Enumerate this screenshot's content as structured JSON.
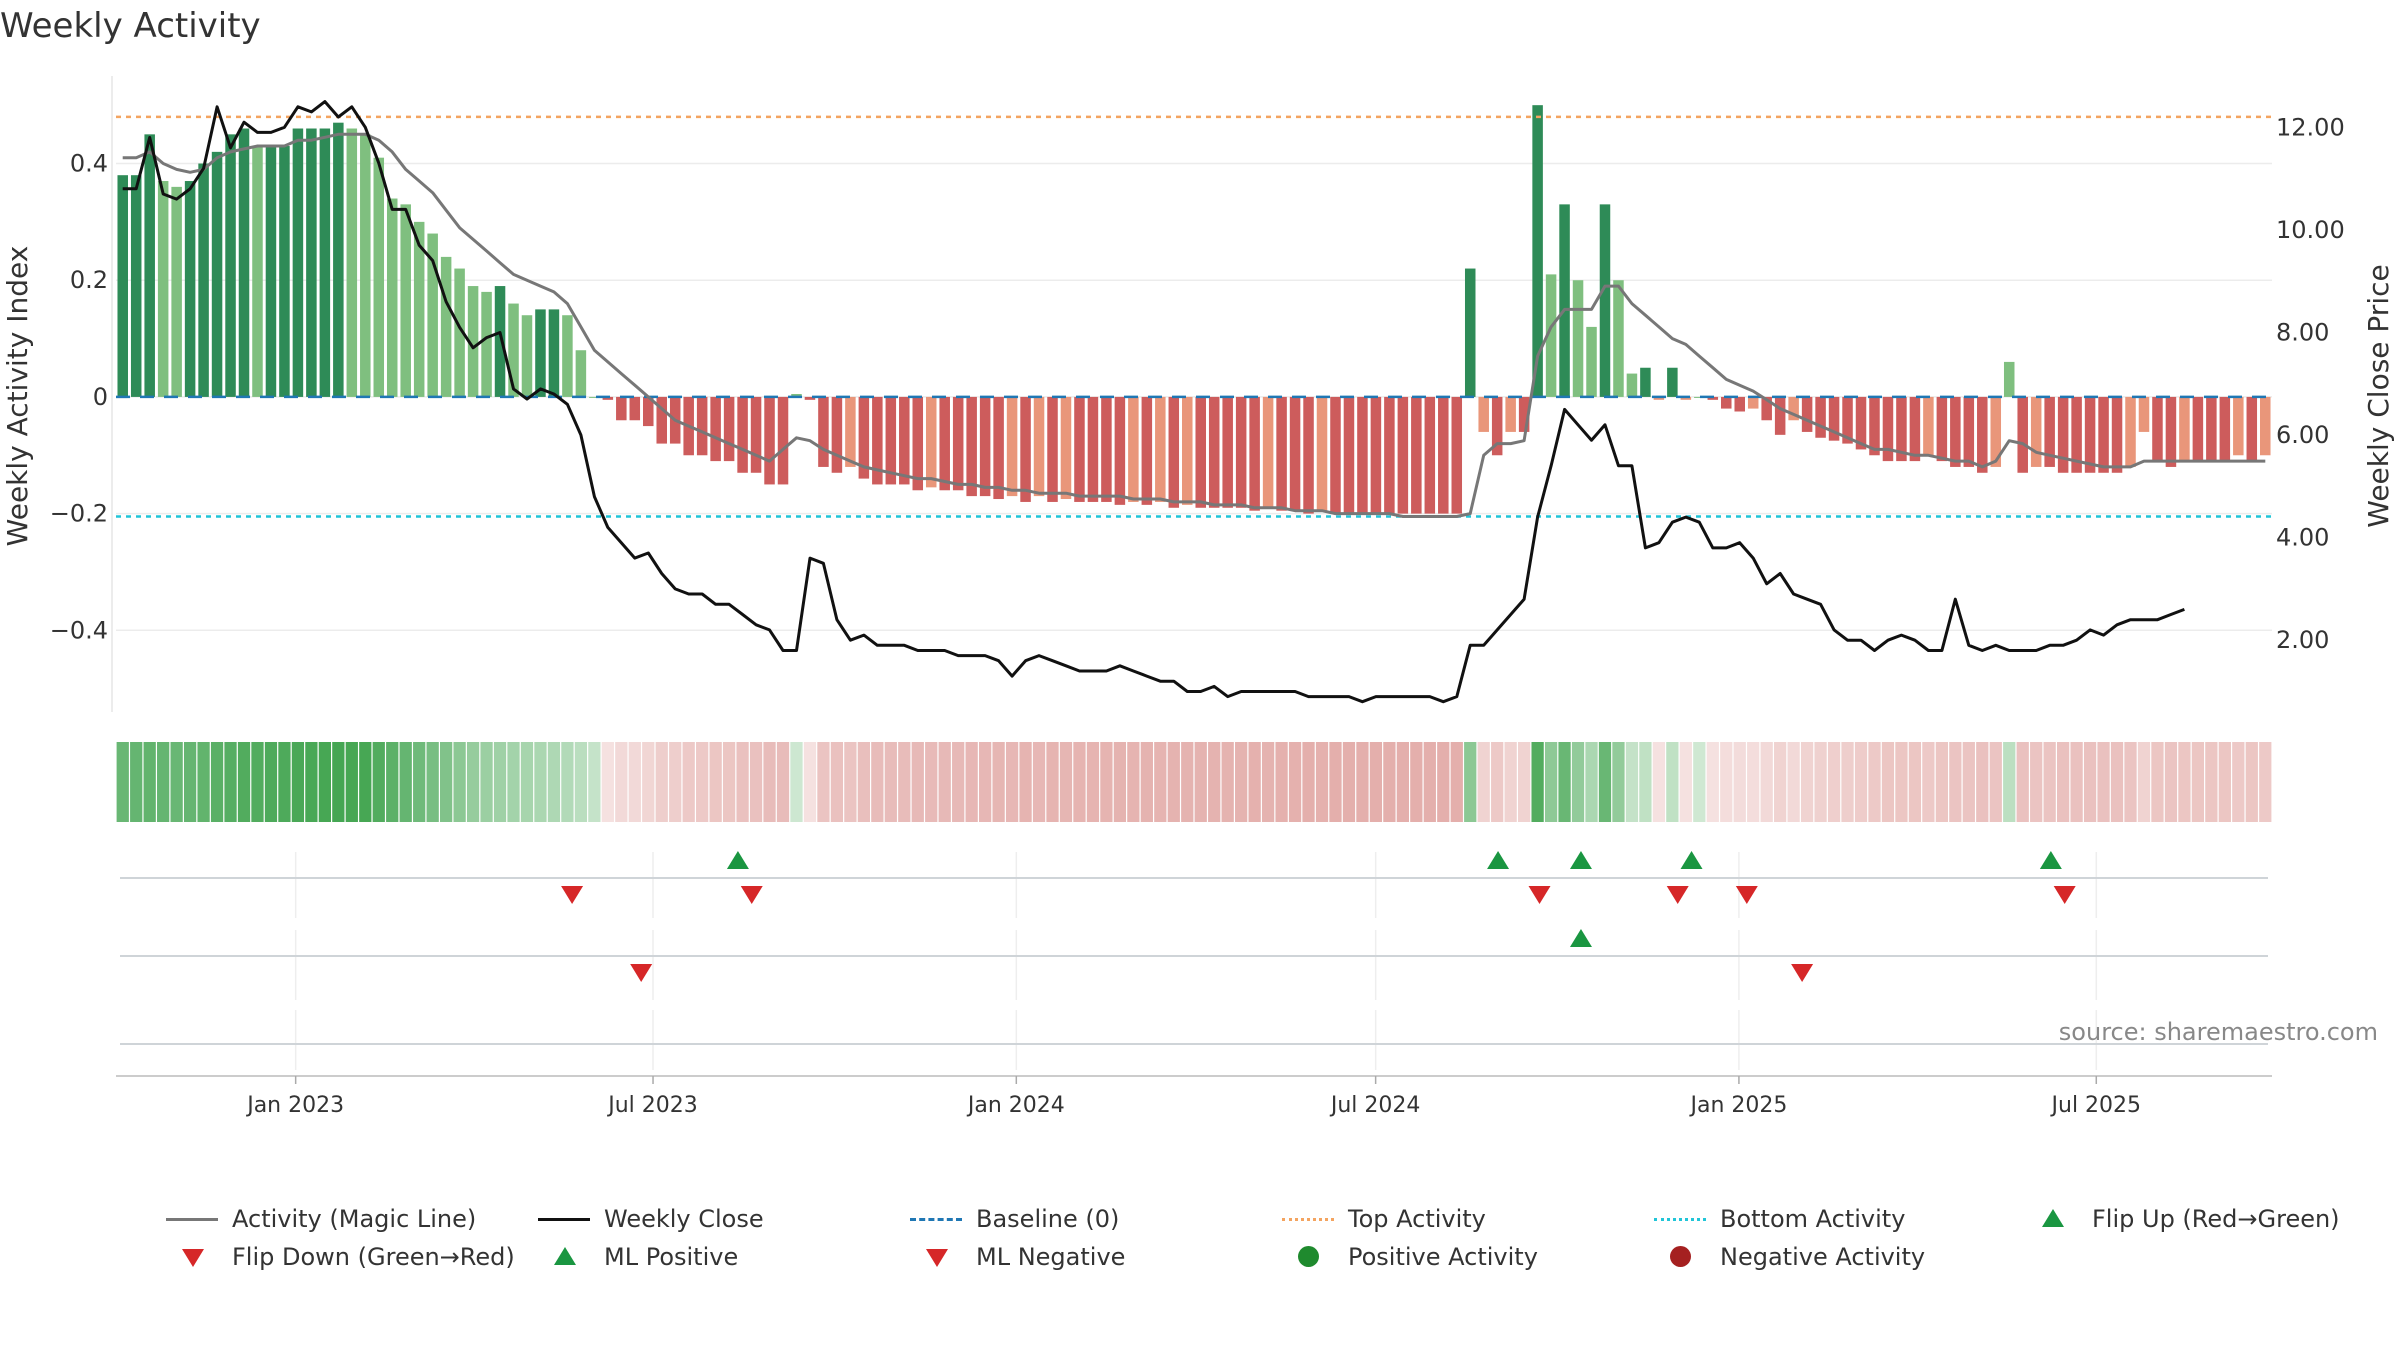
{
  "title": "Weekly Activity",
  "source_note": "source: sharemaestro.com",
  "colors": {
    "pos_dark": "#2e8b57",
    "pos_light": "#7fbf7f",
    "neg_dark": "#cd5c5c",
    "neg_light": "#e9967a",
    "magic_line": "#777777",
    "close_line": "#111111",
    "baseline": "#1f77b4",
    "top_line": "#f4a460",
    "bottom_line": "#20c5d8",
    "marker_up": "#1a9641",
    "marker_down": "#d62728",
    "pos_circle": "#1f8a2e",
    "neg_circle": "#a52020"
  },
  "chart_data": {
    "type": "bar",
    "title": "Weekly Activity",
    "x_start": "2022-10-02",
    "x_end": "2025-09-28",
    "xticks": [
      "Jan 2023",
      "Jul 2023",
      "Jan 2024",
      "Jul 2024",
      "Jan 2025",
      "Jul 2025"
    ],
    "xtick_dates": [
      "2023-01-01",
      "2023-07-01",
      "2024-01-01",
      "2024-07-01",
      "2025-01-01",
      "2025-07-01"
    ],
    "y_left": {
      "label": "Weekly Activity Index",
      "lim": [
        -0.54,
        0.55
      ],
      "ticks": [
        0.4,
        0.2,
        0,
        -0.2,
        -0.4
      ],
      "tick_labels": [
        "0.4",
        "0.2",
        "0",
        "−0.2",
        "−0.4"
      ]
    },
    "y_right": {
      "label": "Weekly Close Price",
      "lim": [
        0.6,
        13.0
      ],
      "ticks": [
        12,
        10,
        8,
        6,
        4,
        2
      ],
      "tick_labels": [
        "12.00",
        "10.00",
        "8.00",
        "6.00",
        "4.00",
        "2.00"
      ]
    },
    "top_activity": 0.48,
    "bottom_activity": -0.205,
    "baseline": 0,
    "activity": [
      0.38,
      0.38,
      0.45,
      0.37,
      0.36,
      0.37,
      0.4,
      0.42,
      0.45,
      0.46,
      0.43,
      0.43,
      0.43,
      0.46,
      0.46,
      0.46,
      0.47,
      0.46,
      0.45,
      0.41,
      0.34,
      0.33,
      0.3,
      0.28,
      0.24,
      0.22,
      0.19,
      0.18,
      0.19,
      0.16,
      0.14,
      0.15,
      0.15,
      0.14,
      0.08,
      0.0,
      -0.005,
      -0.04,
      -0.04,
      -0.05,
      -0.08,
      -0.08,
      -0.1,
      -0.1,
      -0.11,
      -0.11,
      -0.13,
      -0.13,
      -0.15,
      -0.15,
      0.005,
      -0.005,
      -0.12,
      -0.13,
      -0.12,
      -0.14,
      -0.15,
      -0.15,
      -0.15,
      -0.16,
      -0.155,
      -0.16,
      -0.16,
      -0.17,
      -0.17,
      -0.175,
      -0.17,
      -0.18,
      -0.17,
      -0.18,
      -0.175,
      -0.18,
      -0.18,
      -0.18,
      -0.185,
      -0.18,
      -0.185,
      -0.18,
      -0.19,
      -0.185,
      -0.19,
      -0.19,
      -0.19,
      -0.19,
      -0.195,
      -0.19,
      -0.195,
      -0.195,
      -0.2,
      -0.195,
      -0.2,
      -0.2,
      -0.2,
      -0.2,
      -0.2,
      -0.2,
      -0.2,
      -0.2,
      -0.2,
      -0.2,
      0.22,
      -0.06,
      -0.1,
      -0.06,
      -0.06,
      0.5,
      0.21,
      0.33,
      0.2,
      0.12,
      0.33,
      0.2,
      0.04,
      0.05,
      -0.005,
      0.05,
      -0.005,
      0.0,
      -0.005,
      -0.02,
      -0.025,
      -0.02,
      -0.04,
      -0.065,
      -0.04,
      -0.06,
      -0.07,
      -0.075,
      -0.08,
      -0.09,
      -0.1,
      -0.11,
      -0.11,
      -0.11,
      -0.1,
      -0.11,
      -0.12,
      -0.12,
      -0.13,
      -0.12,
      0.06,
      -0.13,
      -0.12,
      -0.12,
      -0.13,
      -0.13,
      -0.13,
      -0.13,
      -0.13,
      -0.12,
      -0.06,
      -0.11,
      -0.12,
      -0.11,
      -0.11,
      -0.11,
      -0.11,
      -0.1,
      -0.11,
      -0.1
    ],
    "magic_line": [
      0.41,
      0.41,
      0.42,
      0.4,
      0.39,
      0.385,
      0.39,
      0.41,
      0.42,
      0.425,
      0.43,
      0.43,
      0.43,
      0.44,
      0.44,
      0.445,
      0.45,
      0.45,
      0.45,
      0.44,
      0.42,
      0.39,
      0.37,
      0.35,
      0.32,
      0.29,
      0.27,
      0.25,
      0.23,
      0.21,
      0.2,
      0.19,
      0.18,
      0.16,
      0.12,
      0.08,
      0.06,
      0.04,
      0.02,
      0.0,
      -0.02,
      -0.04,
      -0.05,
      -0.06,
      -0.07,
      -0.08,
      -0.09,
      -0.1,
      -0.11,
      -0.09,
      -0.07,
      -0.075,
      -0.09,
      -0.1,
      -0.11,
      -0.12,
      -0.125,
      -0.13,
      -0.135,
      -0.14,
      -0.14,
      -0.145,
      -0.15,
      -0.15,
      -0.155,
      -0.155,
      -0.16,
      -0.16,
      -0.165,
      -0.165,
      -0.165,
      -0.17,
      -0.17,
      -0.17,
      -0.17,
      -0.175,
      -0.175,
      -0.175,
      -0.18,
      -0.18,
      -0.18,
      -0.185,
      -0.185,
      -0.185,
      -0.19,
      -0.19,
      -0.19,
      -0.195,
      -0.195,
      -0.195,
      -0.2,
      -0.2,
      -0.2,
      -0.2,
      -0.2,
      -0.205,
      -0.205,
      -0.205,
      -0.205,
      -0.205,
      -0.2,
      -0.1,
      -0.08,
      -0.08,
      -0.075,
      0.07,
      0.12,
      0.15,
      0.15,
      0.15,
      0.19,
      0.19,
      0.16,
      0.14,
      0.12,
      0.1,
      0.09,
      0.07,
      0.05,
      0.03,
      0.02,
      0.01,
      -0.005,
      -0.02,
      -0.03,
      -0.04,
      -0.05,
      -0.06,
      -0.07,
      -0.08,
      -0.09,
      -0.09,
      -0.095,
      -0.1,
      -0.1,
      -0.105,
      -0.11,
      -0.11,
      -0.12,
      -0.11,
      -0.075,
      -0.08,
      -0.095,
      -0.1,
      -0.105,
      -0.11,
      -0.115,
      -0.12,
      -0.12,
      -0.12,
      -0.11,
      -0.11,
      -0.11,
      -0.11,
      -0.11,
      -0.11,
      -0.11,
      -0.11,
      -0.11,
      -0.11
    ],
    "close": [
      10.8,
      10.8,
      11.8,
      10.7,
      10.6,
      10.8,
      11.2,
      12.4,
      11.6,
      12.1,
      11.9,
      11.9,
      12.0,
      12.4,
      12.3,
      12.5,
      12.2,
      12.4,
      12.0,
      11.3,
      10.4,
      10.4,
      9.7,
      9.4,
      8.6,
      8.1,
      7.7,
      7.9,
      8.0,
      6.9,
      6.7,
      6.9,
      6.8,
      6.6,
      6.0,
      4.8,
      4.2,
      3.9,
      3.6,
      3.7,
      3.3,
      3.0,
      2.9,
      2.9,
      2.7,
      2.7,
      2.5,
      2.3,
      2.2,
      1.8,
      1.8,
      3.6,
      3.5,
      2.4,
      2.0,
      2.1,
      1.9,
      1.9,
      1.9,
      1.8,
      1.8,
      1.8,
      1.7,
      1.7,
      1.7,
      1.6,
      1.3,
      1.6,
      1.7,
      1.6,
      1.5,
      1.4,
      1.4,
      1.4,
      1.5,
      1.4,
      1.3,
      1.2,
      1.2,
      1.0,
      1.0,
      1.1,
      0.9,
      1.0,
      1.0,
      1.0,
      1.0,
      1.0,
      0.9,
      0.9,
      0.9,
      0.9,
      0.8,
      0.9,
      0.9,
      0.9,
      0.9,
      0.9,
      0.8,
      0.9,
      1.9,
      1.9,
      2.2,
      2.5,
      2.8,
      4.4,
      5.4,
      6.5,
      6.2,
      5.9,
      6.2,
      5.4,
      5.4,
      3.8,
      3.9,
      4.3,
      4.4,
      4.3,
      3.8,
      3.8,
      3.9,
      3.6,
      3.1,
      3.3,
      2.9,
      2.8,
      2.7,
      2.2,
      2.0,
      2.0,
      1.8,
      2.0,
      2.1,
      2.0,
      1.8,
      1.8,
      2.8,
      1.9,
      1.8,
      1.9,
      1.8,
      1.8,
      1.8,
      1.9,
      1.9,
      2.0,
      2.2,
      2.1,
      2.3,
      2.4,
      2.4,
      2.4,
      2.5,
      2.6
    ],
    "strip_intensity": [
      0.78,
      0.8,
      0.82,
      0.8,
      0.78,
      0.8,
      0.82,
      0.86,
      0.88,
      0.9,
      0.9,
      0.92,
      0.92,
      0.94,
      0.95,
      0.96,
      0.97,
      0.96,
      0.96,
      0.9,
      0.85,
      0.8,
      0.75,
      0.7,
      0.66,
      0.6,
      0.55,
      0.52,
      0.5,
      0.48,
      0.46,
      0.44,
      0.42,
      0.4,
      0.36,
      0.3
    ],
    "signal_rows": [
      {
        "name": "flips",
        "up": [
          "2023-08-13",
          "2024-09-01",
          "2024-10-13",
          "2024-12-08",
          "2025-06-08"
        ],
        "down": [
          "2023-05-21",
          "2023-08-20",
          "2024-09-22",
          "2024-12-01",
          "2025-01-05",
          "2025-06-15"
        ]
      },
      {
        "name": "ml",
        "up": [
          "2024-10-13"
        ],
        "down": [
          "2023-06-25",
          "2025-02-02"
        ]
      },
      {
        "name": "activity_dots",
        "up": [],
        "down": []
      }
    ]
  },
  "legend": [
    {
      "label": "Activity (Magic Line)",
      "symbol": "line",
      "color": "#777777"
    },
    {
      "label": "Weekly Close",
      "symbol": "line",
      "color": "#111111"
    },
    {
      "label": "Baseline (0)",
      "symbol": "dash",
      "color": "#1f77b4"
    },
    {
      "label": "Top Activity",
      "symbol": "dot",
      "color": "#f4a460"
    },
    {
      "label": "Bottom Activity",
      "symbol": "dot",
      "color": "#20c5d8"
    },
    {
      "label": "Flip Up (Red→Green)",
      "symbol": "tri-up",
      "color": "#1a9641"
    },
    {
      "label": "Flip Down (Green→Red)",
      "symbol": "tri-dn",
      "color": "#d62728"
    },
    {
      "label": "ML Positive",
      "symbol": "tri-up",
      "color": "#1a9641"
    },
    {
      "label": "ML Negative",
      "symbol": "tri-dn",
      "color": "#d62728"
    },
    {
      "label": "Positive Activity",
      "symbol": "circ",
      "color": "#1f8a2e"
    },
    {
      "label": "Negative Activity",
      "symbol": "circ",
      "color": "#a52020"
    }
  ]
}
